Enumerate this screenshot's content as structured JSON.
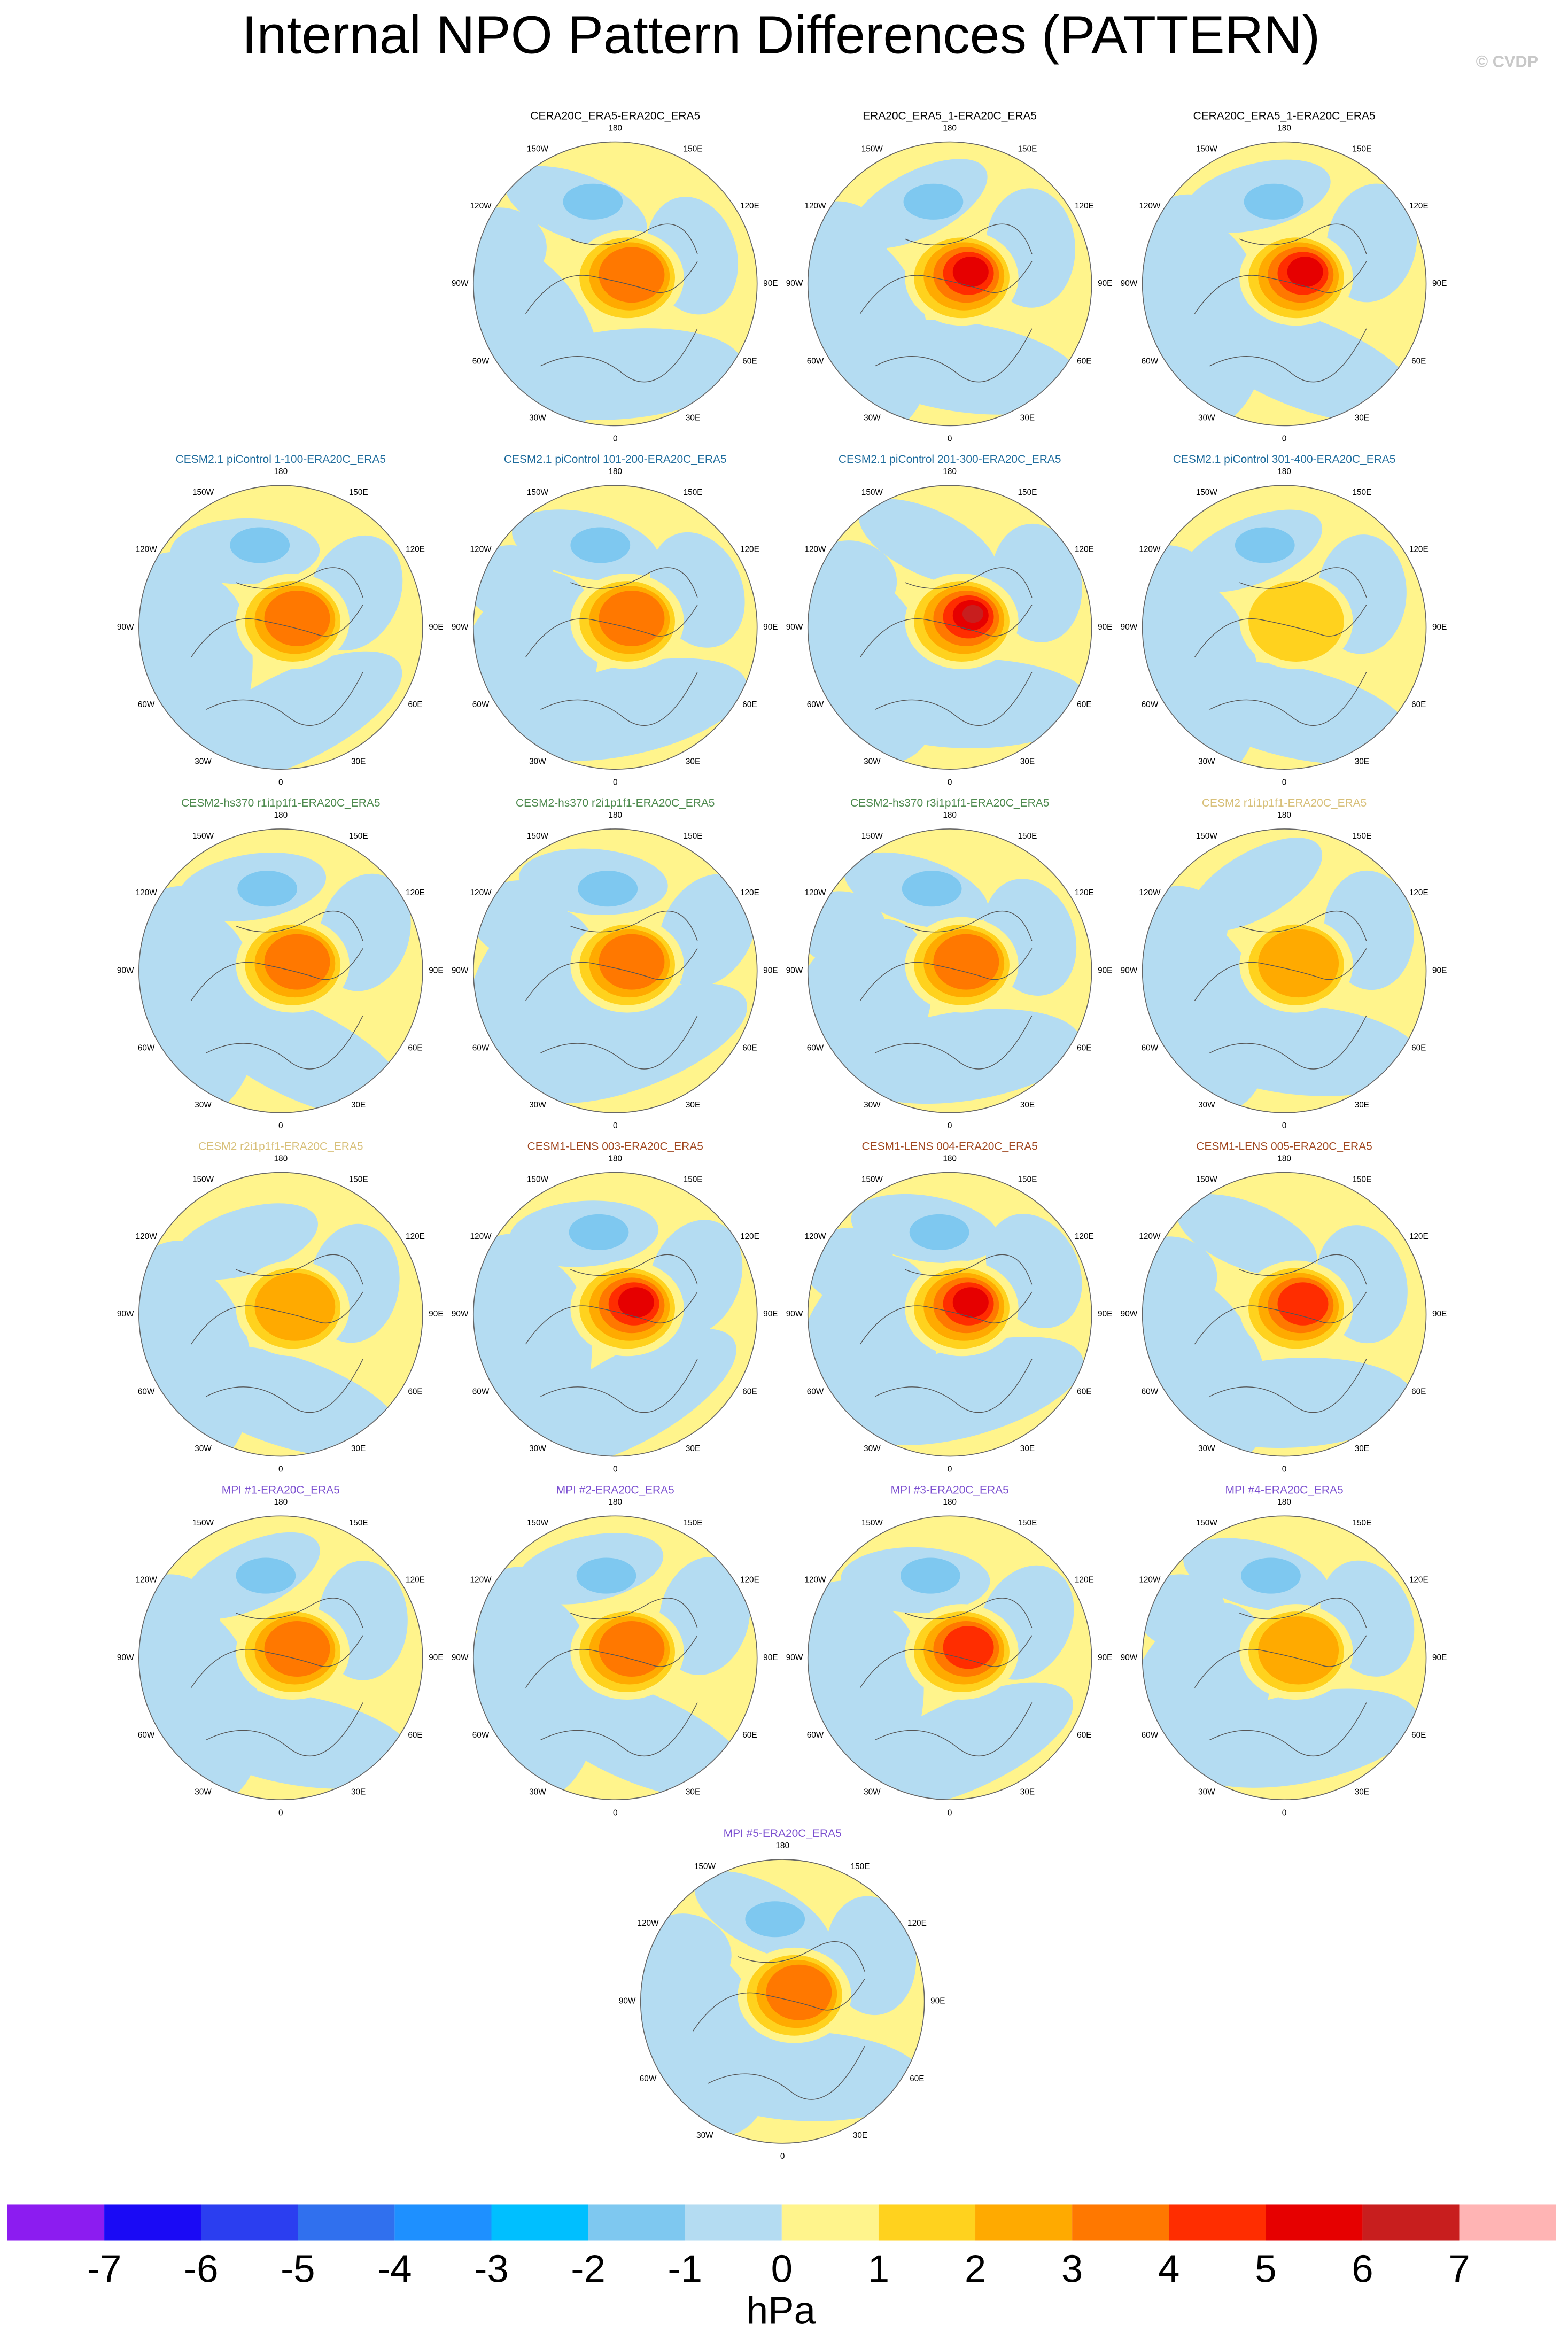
{
  "title": "Internal NPO Pattern Differences (PATTERN)",
  "watermark": "© CVDP",
  "longitude_labels": [
    "180",
    "150E",
    "120E",
    "90E",
    "60E",
    "30E",
    "0",
    "30W",
    "60W",
    "90W",
    "120W",
    "150W"
  ],
  "panels": [
    {
      "title": "CERA20C_ERA5-ERA20C_ERA5",
      "color": "#000000"
    },
    {
      "title": "ERA20C_ERA5_1-ERA20C_ERA5",
      "color": "#000000"
    },
    {
      "title": "CERA20C_ERA5_1-ERA20C_ERA5",
      "color": "#000000"
    },
    {
      "title": "CESM2.1 piControl 1-100-ERA20C_ERA5",
      "color": "#1c6b9c"
    },
    {
      "title": "CESM2.1 piControl 101-200-ERA20C_ERA5",
      "color": "#1c6b9c"
    },
    {
      "title": "CESM2.1 piControl 201-300-ERA20C_ERA5",
      "color": "#1c6b9c"
    },
    {
      "title": "CESM2.1 piControl 301-400-ERA20C_ERA5",
      "color": "#1c6b9c"
    },
    {
      "title": "CESM2-hs370 r1i1p1f1-ERA20C_ERA5",
      "color": "#4e8a4e"
    },
    {
      "title": "CESM2-hs370 r2i1p1f1-ERA20C_ERA5",
      "color": "#4e8a4e"
    },
    {
      "title": "CESM2-hs370 r3i1p1f1-ERA20C_ERA5",
      "color": "#4e8a4e"
    },
    {
      "title": "CESM2 r1i1p1f1-ERA20C_ERA5",
      "color": "#d8c07a"
    },
    {
      "title": "CESM2 r2i1p1f1-ERA20C_ERA5",
      "color": "#d8c07a"
    },
    {
      "title": "CESM1-LENS 003-ERA20C_ERA5",
      "color": "#a0461e"
    },
    {
      "title": "CESM1-LENS 004-ERA20C_ERA5",
      "color": "#a0461e"
    },
    {
      "title": "CESM1-LENS 005-ERA20C_ERA5",
      "color": "#a0461e"
    },
    {
      "title": "MPI #1-ERA20C_ERA5",
      "color": "#7b4fd0"
    },
    {
      "title": "MPI #2-ERA20C_ERA5",
      "color": "#7b4fd0"
    },
    {
      "title": "MPI #3-ERA20C_ERA5",
      "color": "#7b4fd0"
    },
    {
      "title": "MPI #4-ERA20C_ERA5",
      "color": "#7b4fd0"
    },
    {
      "title": "MPI #5-ERA20C_ERA5",
      "color": "#7b4fd0"
    }
  ],
  "colorbar": {
    "colors": [
      "#8c1cf0",
      "#1a0af5",
      "#2b3ef0",
      "#3070ee",
      "#1e90ff",
      "#00bfff",
      "#7ec8f0",
      "#b4dcf2",
      "#fff48c",
      "#ffd21e",
      "#ffaa00",
      "#ff7800",
      "#ff2d00",
      "#e60000",
      "#c81e1e",
      "#ffb4b4"
    ],
    "ticks": [
      -7,
      -6,
      -5,
      -4,
      -3,
      -2,
      -1,
      0,
      1,
      2,
      3,
      4,
      5,
      6,
      7
    ],
    "label": "hPa"
  }
}
